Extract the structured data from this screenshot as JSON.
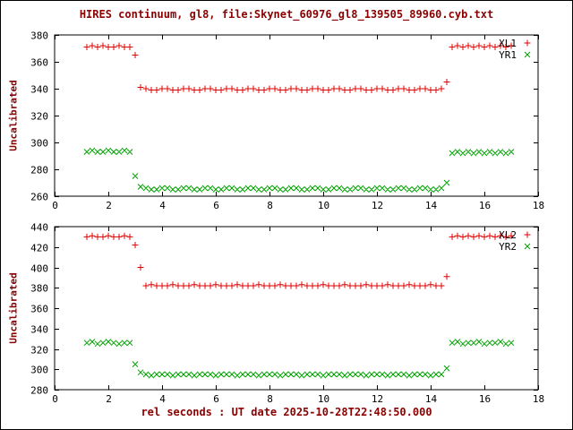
{
  "title": "HIRES continuum, gl8, file:Skynet_60976_gl8_139505_89960.cyb.txt",
  "x_label": "rel seconds : UT date 2025-10-28T22:48:50.000",
  "colors": {
    "red": "#dd0000",
    "green": "#00a000",
    "label": "#8b0000",
    "axis": "#000000",
    "background": "#ffffff"
  },
  "chart_data": [
    {
      "type": "scatter",
      "panel": "top",
      "ylabel": "Uncalibrated",
      "ylim": [
        260,
        380
      ],
      "ytick_step": 20,
      "xlim": [
        0,
        18
      ],
      "xtick_step": 2,
      "x0": 1.2,
      "dx": 0.2,
      "legend_position": "top-right",
      "series": [
        {
          "name": "XL1",
          "marker": "+",
          "color": "#dd0000",
          "values": [
            371,
            372,
            371,
            372,
            371,
            371,
            372,
            371,
            371,
            365,
            341,
            340,
            339,
            339,
            340,
            340,
            339,
            339,
            340,
            340,
            339,
            339,
            340,
            340,
            339,
            339,
            340,
            340,
            339,
            339,
            340,
            340,
            339,
            339,
            340,
            340,
            339,
            339,
            340,
            340,
            339,
            339,
            340,
            340,
            339,
            339,
            340,
            340,
            339,
            339,
            340,
            340,
            339,
            339,
            340,
            340,
            339,
            339,
            340,
            340,
            339,
            339,
            340,
            340,
            339,
            339,
            340,
            345,
            371,
            372,
            371,
            372,
            371,
            372,
            371,
            372,
            371,
            372,
            371,
            372
          ]
        },
        {
          "name": "YR1",
          "marker": "x",
          "color": "#00a000",
          "values": [
            293,
            294,
            293,
            293,
            294,
            293,
            293,
            294,
            293,
            275,
            267,
            266,
            265,
            265,
            266,
            266,
            265,
            265,
            266,
            266,
            265,
            265,
            266,
            266,
            265,
            265,
            266,
            266,
            265,
            265,
            266,
            266,
            265,
            265,
            266,
            266,
            265,
            265,
            266,
            266,
            265,
            265,
            266,
            266,
            265,
            265,
            266,
            266,
            265,
            265,
            266,
            266,
            265,
            265,
            266,
            266,
            265,
            265,
            266,
            266,
            265,
            265,
            266,
            266,
            265,
            265,
            266,
            270,
            292,
            293,
            292,
            293,
            292,
            293,
            292,
            293,
            292,
            293,
            292,
            293
          ]
        }
      ]
    },
    {
      "type": "scatter",
      "panel": "bottom",
      "ylabel": "Uncalibrated",
      "ylim": [
        280,
        440
      ],
      "ytick_step": 20,
      "xlim": [
        0,
        18
      ],
      "xtick_step": 2,
      "x0": 1.2,
      "dx": 0.2,
      "legend_position": "top-right",
      "series": [
        {
          "name": "XL2",
          "marker": "+",
          "color": "#dd0000",
          "values": [
            430,
            431,
            430,
            430,
            431,
            430,
            430,
            431,
            430,
            422,
            400,
            382,
            383,
            382,
            382,
            382,
            383,
            382,
            382,
            382,
            383,
            382,
            382,
            382,
            383,
            382,
            382,
            382,
            383,
            382,
            382,
            382,
            383,
            382,
            382,
            382,
            383,
            382,
            382,
            382,
            383,
            382,
            382,
            382,
            383,
            382,
            382,
            382,
            383,
            382,
            382,
            382,
            383,
            382,
            382,
            382,
            383,
            382,
            382,
            382,
            383,
            382,
            382,
            382,
            383,
            382,
            382,
            391,
            430,
            431,
            430,
            431,
            430,
            431,
            430,
            431,
            430,
            431,
            430,
            431
          ]
        },
        {
          "name": "YR2",
          "marker": "x",
          "color": "#00a000",
          "values": [
            326,
            327,
            325,
            326,
            327,
            326,
            325,
            326,
            326,
            305,
            297,
            295,
            294,
            295,
            295,
            295,
            294,
            295,
            295,
            295,
            294,
            295,
            295,
            295,
            294,
            295,
            295,
            295,
            294,
            295,
            295,
            295,
            294,
            295,
            295,
            295,
            294,
            295,
            295,
            295,
            294,
            295,
            295,
            295,
            294,
            295,
            295,
            295,
            294,
            295,
            295,
            295,
            294,
            295,
            295,
            295,
            294,
            295,
            295,
            295,
            294,
            295,
            295,
            295,
            294,
            295,
            295,
            301,
            326,
            327,
            325,
            326,
            326,
            327,
            325,
            326,
            326,
            327,
            325,
            326
          ]
        }
      ]
    }
  ]
}
